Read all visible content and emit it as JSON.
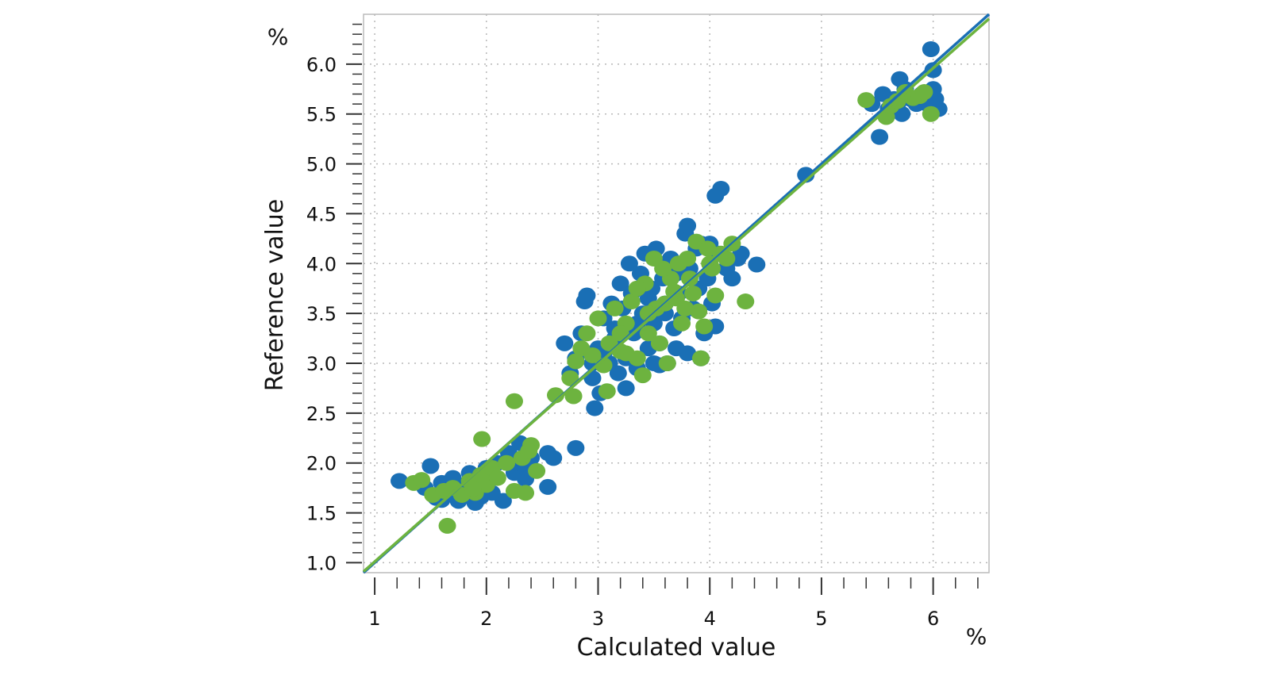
{
  "chart_data": {
    "type": "scatter",
    "title": "",
    "xlabel": "Calculated value",
    "ylabel": "Reference value",
    "x_unit": "%",
    "y_unit": "%",
    "xlim": [
      0.9,
      6.5
    ],
    "ylim": [
      0.9,
      6.5
    ],
    "x_ticks": [
      1,
      2,
      3,
      4,
      5,
      6
    ],
    "y_ticks": [
      1.0,
      1.5,
      2.0,
      2.5,
      3.0,
      3.5,
      4.0,
      4.5,
      5.0,
      5.5,
      6.0
    ],
    "grid": true,
    "legend": "none",
    "colors": {
      "calibration": "#1a6fb5",
      "validation": "#6db33f",
      "grid": "#b8b8b8",
      "axis": "#555555"
    },
    "fit_lines": [
      {
        "color": "#1a6fb5",
        "slope": 1.0,
        "intercept": 0.0
      },
      {
        "color": "#6db33f",
        "slope": 0.99,
        "intercept": 0.02
      }
    ],
    "series": [
      {
        "color": "#1a6fb5",
        "points": [
          [
            1.22,
            1.82
          ],
          [
            1.5,
            1.97
          ],
          [
            1.45,
            1.75
          ],
          [
            1.55,
            1.65
          ],
          [
            1.6,
            1.8
          ],
          [
            1.65,
            1.7
          ],
          [
            1.7,
            1.85
          ],
          [
            1.75,
            1.62
          ],
          [
            1.8,
            1.75
          ],
          [
            1.85,
            1.9
          ],
          [
            1.9,
            1.6
          ],
          [
            1.95,
            1.72
          ],
          [
            2.0,
            1.95
          ],
          [
            2.05,
            1.85
          ],
          [
            2.1,
            2.0
          ],
          [
            2.15,
            1.62
          ],
          [
            2.2,
            2.1
          ],
          [
            2.25,
            1.9
          ],
          [
            2.3,
            2.2
          ],
          [
            2.35,
            1.95
          ],
          [
            2.4,
            2.05
          ],
          [
            2.55,
            2.1
          ],
          [
            2.6,
            2.05
          ],
          [
            2.55,
            1.76
          ],
          [
            2.8,
            2.15
          ],
          [
            1.95,
            1.66
          ],
          [
            1.72,
            1.72
          ],
          [
            1.6,
            1.63
          ],
          [
            2.05,
            1.7
          ],
          [
            2.25,
            2.0
          ],
          [
            2.35,
            1.84
          ],
          [
            1.88,
            1.8
          ],
          [
            2.7,
            3.2
          ],
          [
            2.75,
            2.9
          ],
          [
            2.8,
            3.05
          ],
          [
            2.85,
            3.3
          ],
          [
            2.88,
            3.62
          ],
          [
            2.9,
            3.68
          ],
          [
            2.95,
            2.85
          ],
          [
            2.97,
            2.55
          ],
          [
            3.0,
            3.15
          ],
          [
            3.02,
            2.7
          ],
          [
            3.05,
            3.45
          ],
          [
            3.1,
            3.0
          ],
          [
            3.12,
            3.6
          ],
          [
            3.15,
            3.25
          ],
          [
            3.18,
            2.9
          ],
          [
            3.2,
            3.8
          ],
          [
            3.22,
            3.55
          ],
          [
            3.25,
            3.05
          ],
          [
            3.28,
            4.0
          ],
          [
            3.3,
            3.7
          ],
          [
            3.32,
            3.3
          ],
          [
            3.35,
            2.95
          ],
          [
            3.38,
            3.9
          ],
          [
            3.4,
            3.5
          ],
          [
            3.42,
            4.1
          ],
          [
            3.45,
            3.15
          ],
          [
            3.48,
            3.75
          ],
          [
            3.5,
            3.4
          ],
          [
            3.52,
            4.15
          ],
          [
            3.55,
            3.2
          ],
          [
            3.58,
            3.85
          ],
          [
            3.6,
            3.6
          ],
          [
            3.62,
            3.0
          ],
          [
            3.65,
            4.05
          ],
          [
            3.68,
            3.35
          ],
          [
            3.7,
            3.9
          ],
          [
            3.72,
            3.7
          ],
          [
            3.75,
            3.45
          ],
          [
            3.78,
            4.3
          ],
          [
            3.8,
            4.38
          ],
          [
            3.82,
            3.95
          ],
          [
            3.85,
            3.55
          ],
          [
            3.88,
            4.15
          ],
          [
            3.9,
            3.75
          ],
          [
            3.92,
            4.2
          ],
          [
            3.95,
            3.3
          ],
          [
            3.98,
            3.85
          ],
          [
            4.0,
            4.2
          ],
          [
            4.02,
            3.6
          ],
          [
            4.05,
            3.37
          ],
          [
            4.08,
            4.1
          ],
          [
            4.1,
            4.75
          ],
          [
            4.05,
            4.68
          ],
          [
            4.15,
            3.95
          ],
          [
            4.2,
            3.85
          ],
          [
            4.25,
            4.05
          ],
          [
            4.28,
            4.1
          ],
          [
            4.42,
            3.99
          ],
          [
            3.92,
            3.05
          ],
          [
            3.55,
            2.98
          ],
          [
            3.25,
            2.75
          ],
          [
            3.6,
            3.5
          ],
          [
            3.7,
            3.15
          ],
          [
            3.45,
            3.65
          ],
          [
            3.35,
            3.4
          ],
          [
            3.15,
            3.35
          ],
          [
            3.05,
            3.1
          ],
          [
            2.95,
            3.0
          ],
          [
            3.5,
            3.0
          ],
          [
            3.8,
            3.1
          ],
          [
            4.86,
            4.89
          ],
          [
            5.45,
            5.6
          ],
          [
            5.52,
            5.27
          ],
          [
            5.55,
            5.7
          ],
          [
            5.6,
            5.55
          ],
          [
            5.65,
            5.65
          ],
          [
            5.7,
            5.85
          ],
          [
            5.72,
            5.5
          ],
          [
            5.75,
            5.75
          ],
          [
            5.8,
            5.65
          ],
          [
            5.85,
            5.6
          ],
          [
            5.9,
            5.7
          ],
          [
            5.95,
            5.6
          ],
          [
            6.0,
            5.75
          ],
          [
            6.02,
            5.65
          ],
          [
            6.05,
            5.55
          ],
          [
            6.0,
            5.94
          ],
          [
            5.98,
            6.15
          ],
          [
            5.68,
            5.6
          ]
        ]
      },
      {
        "color": "#6db33f",
        "points": [
          [
            1.35,
            1.8
          ],
          [
            1.42,
            1.83
          ],
          [
            1.52,
            1.68
          ],
          [
            1.62,
            1.72
          ],
          [
            1.65,
            1.37
          ],
          [
            1.7,
            1.75
          ],
          [
            1.78,
            1.68
          ],
          [
            1.85,
            1.82
          ],
          [
            1.9,
            1.7
          ],
          [
            1.95,
            1.88
          ],
          [
            1.96,
            2.24
          ],
          [
            2.0,
            1.78
          ],
          [
            2.05,
            1.95
          ],
          [
            2.1,
            1.85
          ],
          [
            2.18,
            2.0
          ],
          [
            2.25,
            1.72
          ],
          [
            2.25,
            2.62
          ],
          [
            2.32,
            2.05
          ],
          [
            2.35,
            1.7
          ],
          [
            2.4,
            2.18
          ],
          [
            2.45,
            1.92
          ],
          [
            2.38,
            2.12
          ],
          [
            1.88,
            1.74
          ],
          [
            2.62,
            2.68
          ],
          [
            2.75,
            2.85
          ],
          [
            2.78,
            2.67
          ],
          [
            2.8,
            3.02
          ],
          [
            2.85,
            3.15
          ],
          [
            2.9,
            3.3
          ],
          [
            2.95,
            3.08
          ],
          [
            3.0,
            3.45
          ],
          [
            3.05,
            2.98
          ],
          [
            3.08,
            2.72
          ],
          [
            3.1,
            3.2
          ],
          [
            3.15,
            3.55
          ],
          [
            3.2,
            3.12
          ],
          [
            3.25,
            3.4
          ],
          [
            3.3,
            3.62
          ],
          [
            3.35,
            3.05
          ],
          [
            3.4,
            2.88
          ],
          [
            3.42,
            3.8
          ],
          [
            3.45,
            3.3
          ],
          [
            3.5,
            4.05
          ],
          [
            3.52,
            3.55
          ],
          [
            3.55,
            3.2
          ],
          [
            3.6,
            3.6
          ],
          [
            3.62,
            3.0
          ],
          [
            3.65,
            3.85
          ],
          [
            3.7,
            3.65
          ],
          [
            3.72,
            4.0
          ],
          [
            3.75,
            3.4
          ],
          [
            3.8,
            4.05
          ],
          [
            3.82,
            3.85
          ],
          [
            3.88,
            4.22
          ],
          [
            3.9,
            3.52
          ],
          [
            3.92,
            3.05
          ],
          [
            3.95,
            3.37
          ],
          [
            3.98,
            4.15
          ],
          [
            4.0,
            4.0
          ],
          [
            4.05,
            3.68
          ],
          [
            4.1,
            4.1
          ],
          [
            4.15,
            4.05
          ],
          [
            4.2,
            4.2
          ],
          [
            4.32,
            3.62
          ],
          [
            3.35,
            3.75
          ],
          [
            3.25,
            3.1
          ],
          [
            3.45,
            3.5
          ],
          [
            3.68,
            3.72
          ],
          [
            3.58,
            3.95
          ],
          [
            3.78,
            3.55
          ],
          [
            3.85,
            3.7
          ],
          [
            4.02,
            3.95
          ],
          [
            3.2,
            3.3
          ],
          [
            5.4,
            5.64
          ],
          [
            5.58,
            5.47
          ],
          [
            5.62,
            5.58
          ],
          [
            5.68,
            5.63
          ],
          [
            5.75,
            5.72
          ],
          [
            5.82,
            5.66
          ],
          [
            5.88,
            5.68
          ],
          [
            5.92,
            5.72
          ],
          [
            5.98,
            5.5
          ]
        ]
      }
    ]
  }
}
